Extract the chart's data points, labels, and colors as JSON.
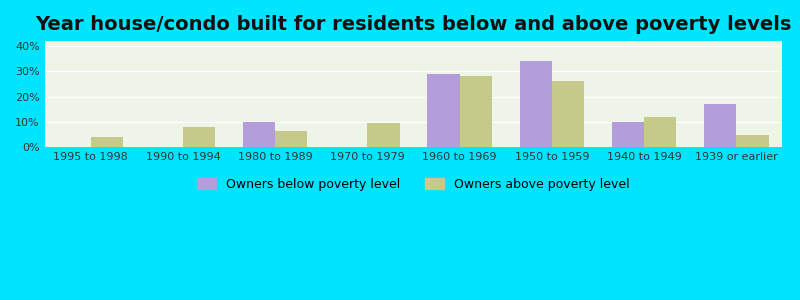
{
  "title": "Year house/condo built for residents below and above poverty levels",
  "categories": [
    "1995 to 1998",
    "1990 to 1994",
    "1980 to 1989",
    "1970 to 1979",
    "1960 to 1969",
    "1950 to 1959",
    "1940 to 1949",
    "1939 or earlier"
  ],
  "below_poverty": [
    0,
    0,
    10,
    0,
    29,
    34,
    10,
    17
  ],
  "above_poverty": [
    4,
    8,
    6.5,
    9.5,
    28,
    26,
    12,
    5
  ],
  "below_color": "#b39ddb",
  "above_color": "#c5c98a",
  "background_gradient_top": "#e8f5e9",
  "background_gradient_bottom": "#f0faf0",
  "ylim": [
    0,
    42
  ],
  "yticks": [
    0,
    10,
    20,
    30,
    40
  ],
  "ytick_labels": [
    "0%",
    "10%",
    "20%",
    "30%",
    "40%"
  ],
  "legend_below": "Owners below poverty level",
  "legend_above": "Owners above poverty level",
  "bar_width": 0.35,
  "title_fontsize": 14,
  "tick_fontsize": 8,
  "legend_fontsize": 9,
  "outer_bg": "#00e5ff",
  "inner_bg_left": "#d4edda",
  "inner_bg_right": "#f5f5dc"
}
